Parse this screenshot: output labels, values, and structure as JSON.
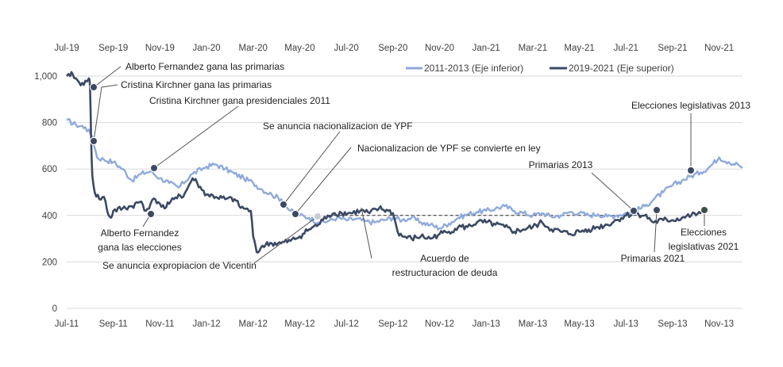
{
  "colors": {
    "series_2011_2013": "#8faadc",
    "series_2019_2021": "#3b4a63",
    "marker_dark": "#3b4a63",
    "marker_green": "#3d4f45",
    "marker_light": "#c8ccd2",
    "grid": "#d9d9d9",
    "text": "#404040"
  },
  "chart_data": {
    "type": "line",
    "title": "",
    "ylim": [
      0,
      1000
    ],
    "grid": true,
    "legend_position": "top-right",
    "y_ticks": [
      "0",
      "200",
      "400",
      "600",
      "800",
      "1,000"
    ],
    "top_axis_labels": [
      "Jul-19",
      "Sep-19",
      "Nov-19",
      "Jan-20",
      "Mar-20",
      "May-20",
      "Jul-20",
      "Sep-20",
      "Nov-20",
      "Jan-21",
      "Mar-21",
      "May-21",
      "Jul-21",
      "Sep-21",
      "Nov-21"
    ],
    "bottom_axis_labels": [
      "Jul-11",
      "Sep-11",
      "Nov-11",
      "Jan-12",
      "Mar-12",
      "May-12",
      "Jul-12",
      "Sep-12",
      "Nov-12",
      "Jan-13",
      "Mar-13",
      "May-13",
      "Jul-13",
      "Sep-13",
      "Nov-13"
    ],
    "x_period_months": 29,
    "series": [
      {
        "name": "2011-2013 (Eje inferior)",
        "axis": "bottom",
        "points": [
          [
            0,
            810
          ],
          [
            0.4,
            790
          ],
          [
            0.8,
            780
          ],
          [
            1.1,
            740
          ],
          [
            1.3,
            650
          ],
          [
            1.6,
            640
          ],
          [
            2.0,
            630
          ],
          [
            2.4,
            600
          ],
          [
            2.8,
            550
          ],
          [
            3.2,
            580
          ],
          [
            3.6,
            590
          ],
          [
            4.0,
            560
          ],
          [
            4.4,
            540
          ],
          [
            4.8,
            520
          ],
          [
            5.4,
            580
          ],
          [
            6.0,
            610
          ],
          [
            6.4,
            620
          ],
          [
            6.8,
            600
          ],
          [
            7.2,
            580
          ],
          [
            7.6,
            560
          ],
          [
            8.0,
            540
          ],
          [
            8.4,
            510
          ],
          [
            8.8,
            490
          ],
          [
            9.2,
            470
          ],
          [
            9.4,
            440
          ],
          [
            9.6,
            420
          ],
          [
            10.0,
            400
          ],
          [
            10.4,
            390
          ],
          [
            10.8,
            370
          ],
          [
            11.2,
            375
          ],
          [
            11.6,
            390
          ],
          [
            12.0,
            380
          ],
          [
            12.4,
            385
          ],
          [
            12.8,
            375
          ],
          [
            13.2,
            370
          ],
          [
            13.6,
            380
          ],
          [
            14.0,
            390
          ],
          [
            14.4,
            380
          ],
          [
            14.8,
            390
          ],
          [
            15.2,
            370
          ],
          [
            15.6,
            360
          ],
          [
            16.0,
            345
          ],
          [
            16.4,
            365
          ],
          [
            16.8,
            390
          ],
          [
            17.2,
            405
          ],
          [
            17.6,
            415
          ],
          [
            18.0,
            420
          ],
          [
            18.4,
            430
          ],
          [
            18.8,
            440
          ],
          [
            19.2,
            420
          ],
          [
            19.6,
            410
          ],
          [
            20.0,
            400
          ],
          [
            20.4,
            410
          ],
          [
            20.8,
            395
          ],
          [
            21.2,
            400
          ],
          [
            21.6,
            415
          ],
          [
            22.0,
            410
          ],
          [
            22.4,
            400
          ],
          [
            22.8,
            405
          ],
          [
            23.2,
            395
          ],
          [
            23.6,
            400
          ],
          [
            24.0,
            410
          ],
          [
            24.4,
            420
          ],
          [
            24.8,
            440
          ],
          [
            25.2,
            470
          ],
          [
            25.6,
            500
          ],
          [
            26.0,
            530
          ],
          [
            26.4,
            550
          ],
          [
            26.8,
            570
          ],
          [
            27.2,
            585
          ],
          [
            27.6,
            610
          ],
          [
            28.0,
            650
          ],
          [
            28.4,
            630
          ],
          [
            28.8,
            620
          ],
          [
            29.0,
            605
          ]
        ]
      },
      {
        "name": "2019-2021 (Eje superior)",
        "axis": "top",
        "points": [
          [
            0,
            1000
          ],
          [
            0.15,
            1000
          ],
          [
            0.25,
            1010
          ],
          [
            0.4,
            990
          ],
          [
            0.6,
            960
          ],
          [
            0.8,
            980
          ],
          [
            0.95,
            990
          ],
          [
            1.0,
            960
          ],
          [
            1.05,
            720
          ],
          [
            1.1,
            570
          ],
          [
            1.2,
            500
          ],
          [
            1.4,
            470
          ],
          [
            1.6,
            480
          ],
          [
            1.8,
            400
          ],
          [
            1.9,
            390
          ],
          [
            2.0,
            420
          ],
          [
            2.4,
            430
          ],
          [
            2.8,
            440
          ],
          [
            3.2,
            460
          ],
          [
            3.4,
            420
          ],
          [
            3.6,
            450
          ],
          [
            3.8,
            470
          ],
          [
            4.0,
            450
          ],
          [
            4.2,
            430
          ],
          [
            4.4,
            450
          ],
          [
            4.6,
            470
          ],
          [
            4.8,
            490
          ],
          [
            5.0,
            480
          ],
          [
            5.2,
            520
          ],
          [
            5.4,
            560
          ],
          [
            5.6,
            540
          ],
          [
            5.8,
            510
          ],
          [
            6.0,
            490
          ],
          [
            6.4,
            480
          ],
          [
            6.8,
            470
          ],
          [
            7.2,
            470
          ],
          [
            7.4,
            440
          ],
          [
            7.6,
            430
          ],
          [
            7.9,
            420
          ],
          [
            8.0,
            310
          ],
          [
            8.1,
            270
          ],
          [
            8.2,
            240
          ],
          [
            8.4,
            270
          ],
          [
            8.8,
            280
          ],
          [
            9.2,
            280
          ],
          [
            9.6,
            290
          ],
          [
            10.0,
            310
          ],
          [
            10.4,
            340
          ],
          [
            10.8,
            360
          ],
          [
            11.0,
            380
          ],
          [
            11.2,
            400
          ],
          [
            11.5,
            410
          ],
          [
            11.8,
            410
          ],
          [
            12.2,
            410
          ],
          [
            12.6,
            420
          ],
          [
            13.0,
            410
          ],
          [
            13.4,
            430
          ],
          [
            13.8,
            420
          ],
          [
            14.0,
            410
          ],
          [
            14.2,
            330
          ],
          [
            14.4,
            310
          ],
          [
            14.8,
            300
          ],
          [
            15.2,
            310
          ],
          [
            15.6,
            300
          ],
          [
            16.0,
            320
          ],
          [
            16.4,
            330
          ],
          [
            16.8,
            350
          ],
          [
            17.2,
            350
          ],
          [
            17.6,
            370
          ],
          [
            18.0,
            370
          ],
          [
            18.4,
            360
          ],
          [
            18.8,
            350
          ],
          [
            19.2,
            330
          ],
          [
            19.6,
            340
          ],
          [
            20.0,
            350
          ],
          [
            20.4,
            370
          ],
          [
            20.8,
            340
          ],
          [
            21.2,
            330
          ],
          [
            21.6,
            320
          ],
          [
            22.0,
            330
          ],
          [
            22.4,
            340
          ],
          [
            22.8,
            350
          ],
          [
            23.2,
            360
          ],
          [
            23.6,
            380
          ],
          [
            24.0,
            400
          ],
          [
            24.4,
            410
          ],
          [
            24.8,
            400
          ],
          [
            25.2,
            370
          ],
          [
            25.6,
            380
          ],
          [
            26.0,
            380
          ],
          [
            26.4,
            390
          ],
          [
            26.8,
            400
          ],
          [
            27.2,
            410
          ],
          [
            27.4,
            420
          ]
        ]
      }
    ],
    "reference_line": {
      "style": "dashed",
      "value": 400,
      "x_start": 11.2,
      "x_end": 24.8
    },
    "annotations": [
      {
        "id": "afgp",
        "text": "Alberto Fernandez gana las primarias",
        "x": 1.0,
        "y": 960,
        "marker": "dark"
      },
      {
        "id": "ckgp",
        "text": "Cristina Kirchner gana las primarias",
        "x": 1.05,
        "y": 720,
        "marker": "dark"
      },
      {
        "id": "ckpres",
        "text": "Cristina Kirchner gana presidenciales 2011",
        "x": 3.55,
        "y": 595,
        "marker": "dark"
      },
      {
        "id": "ypfanuncio",
        "text": "Se anuncia nacionalizacion de YPF",
        "x": 9.35,
        "y": 440,
        "marker": "dark"
      },
      {
        "id": "ypfley",
        "text": "Nacionalizacion de YPF se convierte en ley",
        "x": 9.8,
        "y": 405,
        "marker": "dark"
      },
      {
        "id": "afelec",
        "text": "Alberto Fernandez gana las elecciones",
        "x": 3.5,
        "y": 410,
        "marker": "dark"
      },
      {
        "id": "vicentin",
        "text": "Se anuncia expropiacion de Vicentin",
        "x": 10.95,
        "y": 405,
        "marker": "light"
      },
      {
        "id": "deuda",
        "text": "Acuerdo de restructuracion de deuda",
        "x": 13.1,
        "y": 420,
        "marker": "none"
      },
      {
        "id": "prim2013",
        "text": "Primarias 2013",
        "x": 24.8,
        "y": 430,
        "marker": "dark"
      },
      {
        "id": "leg2013",
        "text": "Elecciones legislativas 2013",
        "x": 27.1,
        "y": 590,
        "marker": "dark"
      },
      {
        "id": "prim2021",
        "text": "Primarias 2021",
        "x": 25.8,
        "y": 425,
        "marker": "dark"
      },
      {
        "id": "leg2021",
        "text": "Elecciones legislativas 2021",
        "x": 27.6,
        "y": 425,
        "marker": "green"
      }
    ]
  }
}
